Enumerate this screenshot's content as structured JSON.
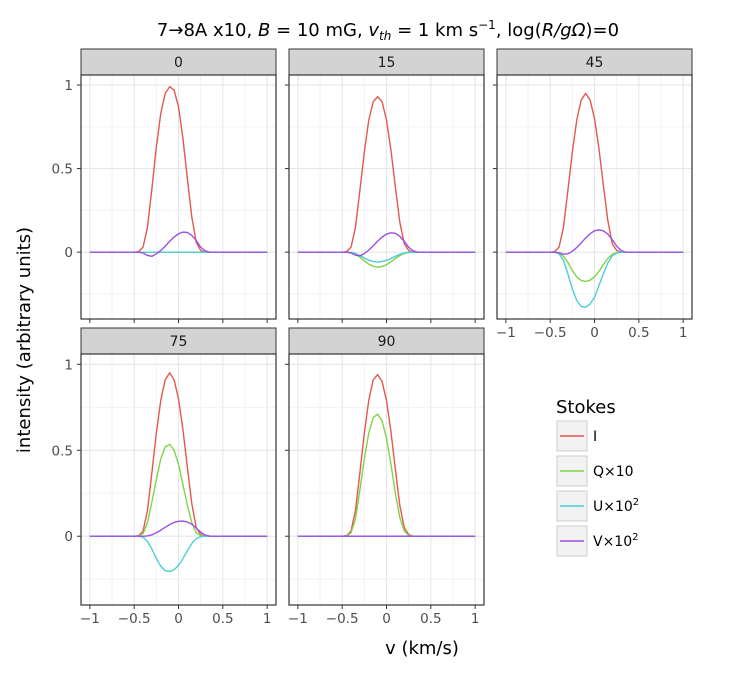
{
  "chart_data": {
    "type": "line",
    "title": "7→8A x10, B = 10 mG, v_th = 1 km s⁻¹, log(R/gΩ)=0",
    "title_parts": {
      "prefix": "7→8A x10, ",
      "b_symbol": "B",
      "b_value": " = 10 mG, ",
      "v_symbol": "v",
      "v_sub": "th",
      "v_value": " = 1 km s",
      "v_exp": "−1",
      "log_prefix": ", log(",
      "log_var": "R/gΩ",
      "log_suffix": ")=0"
    },
    "xlabel": "v (km/s)",
    "ylabel": "intensity (arbitrary units)",
    "xlim": [
      -1.1,
      1.1
    ],
    "ylim": [
      -0.4,
      1.06
    ],
    "x_ticks": [
      -1,
      -0.5,
      0,
      0.5,
      1
    ],
    "x_tick_labels": [
      "−1",
      "−0.5",
      "0",
      "0.5",
      "1"
    ],
    "y_ticks": [
      0,
      0.5,
      1
    ],
    "y_tick_labels": [
      "0",
      "0.5",
      "1"
    ],
    "grid": true,
    "legend": {
      "title": "Stokes",
      "placement": "right",
      "entries": [
        {
          "key": "I",
          "label": "I",
          "color": "#e2584d"
        },
        {
          "key": "Q",
          "label": "Q×10",
          "color": "#7fd346"
        },
        {
          "key": "U",
          "label": "U×10",
          "sup": "2",
          "color": "#4ccdd8"
        },
        {
          "key": "V",
          "label": "V×10",
          "sup": "2",
          "color": "#9d4de6"
        }
      ]
    },
    "x": [
      -1.0,
      -0.9,
      -0.8,
      -0.7,
      -0.6,
      -0.5,
      -0.45,
      -0.4,
      -0.35,
      -0.3,
      -0.25,
      -0.2,
      -0.15,
      -0.1,
      -0.05,
      0.0,
      0.05,
      0.1,
      0.15,
      0.2,
      0.25,
      0.3,
      0.35,
      0.4,
      0.5,
      0.6,
      0.7,
      0.8,
      0.9,
      1.0
    ],
    "panels": [
      {
        "label": "0",
        "series": [
          {
            "key": "I",
            "values": [
              0,
              0,
              0,
              0,
              0,
              0,
              0.003,
              0.03,
              0.15,
              0.38,
              0.63,
              0.83,
              0.95,
              0.99,
              0.97,
              0.87,
              0.68,
              0.44,
              0.21,
              0.06,
              0.01,
              0,
              0,
              0,
              0,
              0,
              0,
              0,
              0,
              0
            ]
          },
          {
            "key": "Q",
            "values": [
              0,
              0,
              0,
              0,
              0,
              0,
              0,
              0,
              0,
              0,
              0,
              0,
              0,
              0,
              0,
              0,
              0,
              0,
              0,
              0,
              0,
              0,
              0,
              0,
              0,
              0,
              0,
              0,
              0,
              0
            ]
          },
          {
            "key": "U",
            "values": [
              0,
              0,
              0,
              0,
              0,
              0,
              0,
              0,
              0,
              0,
              0,
              0,
              0,
              0,
              0,
              0,
              0,
              0,
              0,
              0,
              0,
              0,
              0,
              0,
              0,
              0,
              0,
              0,
              0,
              0
            ]
          },
          {
            "key": "V",
            "values": [
              0,
              0,
              0,
              0,
              0,
              0,
              0,
              -0.005,
              -0.02,
              -0.025,
              -0.01,
              0.01,
              0.035,
              0.065,
              0.09,
              0.11,
              0.12,
              0.118,
              0.1,
              0.07,
              0.03,
              0.008,
              0,
              0,
              0,
              0,
              0,
              0,
              0,
              0
            ]
          }
        ]
      },
      {
        "label": "15",
        "series": [
          {
            "key": "I",
            "values": [
              0,
              0,
              0,
              0,
              0,
              0,
              0.003,
              0.03,
              0.15,
              0.37,
              0.6,
              0.79,
              0.9,
              0.93,
              0.9,
              0.79,
              0.61,
              0.39,
              0.18,
              0.05,
              0.01,
              0,
              0,
              0,
              0,
              0,
              0,
              0,
              0,
              0
            ]
          },
          {
            "key": "Q",
            "values": [
              0,
              0,
              0,
              0,
              0,
              0,
              0,
              -0.003,
              -0.012,
              -0.03,
              -0.052,
              -0.072,
              -0.085,
              -0.09,
              -0.086,
              -0.075,
              -0.058,
              -0.038,
              -0.02,
              -0.008,
              -0.002,
              0,
              0,
              0,
              0,
              0,
              0,
              0,
              0,
              0
            ]
          },
          {
            "key": "U",
            "values": [
              0,
              0,
              0,
              0,
              0,
              0,
              0,
              -0.002,
              -0.008,
              -0.02,
              -0.035,
              -0.048,
              -0.056,
              -0.059,
              -0.056,
              -0.049,
              -0.038,
              -0.025,
              -0.013,
              -0.005,
              -0.001,
              0,
              0,
              0,
              0,
              0,
              0,
              0,
              0,
              0
            ]
          },
          {
            "key": "V",
            "values": [
              0,
              0,
              0,
              0,
              0,
              0,
              0,
              -0.005,
              -0.018,
              -0.022,
              -0.008,
              0.012,
              0.038,
              0.066,
              0.09,
              0.108,
              0.116,
              0.113,
              0.095,
              0.065,
              0.03,
              0.008,
              0,
              0,
              0,
              0,
              0,
              0,
              0,
              0
            ]
          }
        ]
      },
      {
        "label": "45",
        "series": [
          {
            "key": "I",
            "values": [
              0,
              0,
              0,
              0,
              0,
              0,
              0.003,
              0.03,
              0.15,
              0.37,
              0.6,
              0.79,
              0.91,
              0.95,
              0.91,
              0.8,
              0.62,
              0.4,
              0.19,
              0.05,
              0.01,
              0,
              0,
              0,
              0,
              0,
              0,
              0,
              0,
              0
            ]
          },
          {
            "key": "Q",
            "values": [
              0,
              0,
              0,
              0,
              0,
              0,
              0,
              -0.005,
              -0.025,
              -0.062,
              -0.11,
              -0.148,
              -0.17,
              -0.175,
              -0.168,
              -0.148,
              -0.115,
              -0.075,
              -0.038,
              -0.013,
              -0.003,
              0,
              0,
              0,
              0,
              0,
              0,
              0,
              0,
              0
            ]
          },
          {
            "key": "U",
            "values": [
              0,
              0,
              0,
              0,
              0,
              0,
              0,
              -0.01,
              -0.05,
              -0.13,
              -0.22,
              -0.29,
              -0.325,
              -0.33,
              -0.31,
              -0.27,
              -0.2,
              -0.13,
              -0.065,
              -0.022,
              -0.005,
              0,
              0,
              0,
              0,
              0,
              0,
              0,
              0,
              0
            ]
          },
          {
            "key": "V",
            "values": [
              0,
              0,
              0,
              0,
              0,
              0,
              0,
              -0.004,
              -0.012,
              -0.01,
              0.005,
              0.028,
              0.055,
              0.085,
              0.11,
              0.128,
              0.134,
              0.128,
              0.108,
              0.075,
              0.036,
              0.01,
              0,
              0,
              0,
              0,
              0,
              0,
              0,
              0
            ]
          }
        ]
      },
      {
        "label": "75",
        "series": [
          {
            "key": "I",
            "values": [
              0,
              0,
              0,
              0,
              0,
              0,
              0.003,
              0.03,
              0.15,
              0.37,
              0.6,
              0.79,
              0.91,
              0.95,
              0.91,
              0.8,
              0.62,
              0.4,
              0.19,
              0.05,
              0.01,
              0,
              0,
              0,
              0,
              0,
              0,
              0,
              0,
              0
            ]
          },
          {
            "key": "Q",
            "values": [
              0,
              0,
              0,
              0,
              0,
              0,
              0.002,
              0.015,
              0.08,
              0.2,
              0.33,
              0.45,
              0.52,
              0.535,
              0.5,
              0.42,
              0.3,
              0.18,
              0.08,
              0.02,
              0.004,
              0,
              0,
              0,
              0,
              0,
              0,
              0,
              0,
              0
            ]
          },
          {
            "key": "U",
            "values": [
              0,
              0,
              0,
              0,
              0,
              0,
              0,
              -0.005,
              -0.03,
              -0.075,
              -0.13,
              -0.175,
              -0.2,
              -0.205,
              -0.195,
              -0.17,
              -0.13,
              -0.085,
              -0.042,
              -0.014,
              -0.003,
              0,
              0,
              0,
              0,
              0,
              0,
              0,
              0,
              0
            ]
          },
          {
            "key": "V",
            "values": [
              0,
              0,
              0,
              0,
              0,
              0,
              0,
              0,
              0.002,
              0.008,
              0.02,
              0.035,
              0.052,
              0.068,
              0.08,
              0.087,
              0.088,
              0.083,
              0.07,
              0.048,
              0.024,
              0.007,
              0.001,
              0,
              0,
              0,
              0,
              0,
              0,
              0
            ]
          }
        ]
      },
      {
        "label": "90",
        "series": [
          {
            "key": "I",
            "values": [
              0,
              0,
              0,
              0,
              0,
              0,
              0.003,
              0.03,
              0.15,
              0.37,
              0.6,
              0.79,
              0.91,
              0.94,
              0.9,
              0.79,
              0.61,
              0.39,
              0.18,
              0.05,
              0.01,
              0,
              0,
              0,
              0,
              0,
              0,
              0,
              0,
              0
            ]
          },
          {
            "key": "Q",
            "values": [
              0,
              0,
              0,
              0,
              0,
              0,
              0.002,
              0.02,
              0.1,
              0.27,
              0.45,
              0.6,
              0.69,
              0.71,
              0.67,
              0.57,
              0.42,
              0.25,
              0.11,
              0.03,
              0.005,
              0,
              0,
              0,
              0,
              0,
              0,
              0,
              0,
              0
            ]
          },
          {
            "key": "U",
            "values": [
              0,
              0,
              0,
              0,
              0,
              0,
              0,
              0,
              0,
              0,
              0,
              0,
              0,
              0,
              0,
              0,
              0,
              0,
              0,
              0,
              0,
              0,
              0,
              0,
              0,
              0,
              0,
              0,
              0,
              0
            ]
          },
          {
            "key": "V",
            "values": [
              0,
              0,
              0,
              0,
              0,
              0,
              0,
              0,
              0,
              0,
              0,
              0,
              0,
              0,
              0,
              0,
              0,
              0,
              0,
              0,
              0,
              0,
              0,
              0,
              0,
              0,
              0,
              0,
              0,
              0
            ]
          }
        ]
      }
    ]
  }
}
